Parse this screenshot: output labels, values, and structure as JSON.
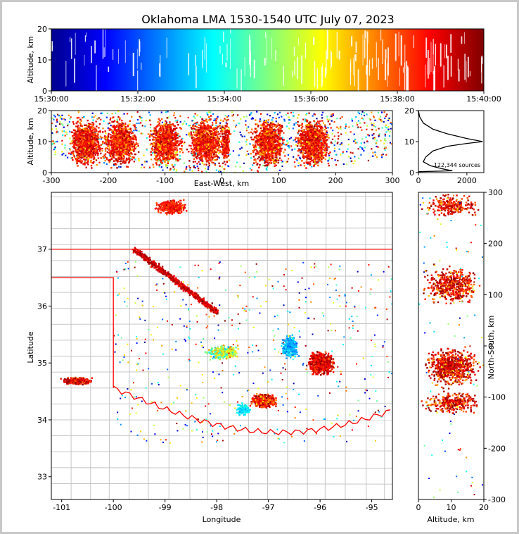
{
  "figure": {
    "title": "Oklahoma LMA 1530-1540 UTC July 07, 2023",
    "source_count_label": "122,344 sources"
  },
  "colors": {
    "colormap": [
      "#00008f",
      "#0000ff",
      "#0080ff",
      "#00ffff",
      "#80ff80",
      "#ffff00",
      "#ff8000",
      "#ff0000",
      "#800000"
    ],
    "state_border": "#ff0000",
    "county_lines": "#c0c0c0",
    "histogram_line": "#000000"
  },
  "chart_data": [
    {
      "type": "scatter",
      "panel": "time-altitude",
      "xlabel": "",
      "ylabel": "Altitude, km",
      "x_ticks": [
        "15:30:00",
        "15:32:00",
        "15:34:00",
        "15:36:00",
        "15:38:00",
        "15:40:00"
      ],
      "y_ticks": [
        0,
        10,
        20
      ],
      "ylim": [
        0,
        20
      ],
      "grid": false
    },
    {
      "type": "scatter",
      "panel": "east-west-altitude",
      "xlabel": "East-West, km",
      "ylabel": "Altitude, km",
      "x_ticks": [
        -300,
        -200,
        -100,
        0,
        100,
        200,
        300
      ],
      "xlim": [
        -300,
        300
      ],
      "y_ticks": [
        0,
        10,
        20
      ],
      "ylim": [
        0,
        20
      ],
      "clusters_x_km": [
        -240,
        -180,
        -100,
        -30,
        5,
        80,
        160
      ]
    },
    {
      "type": "line",
      "panel": "altitude-histogram",
      "x_ticks": [
        0,
        2000
      ],
      "xlim": [
        0,
        2700
      ],
      "y_ticks": [
        0,
        10,
        20
      ],
      "ylim": [
        0,
        20
      ],
      "points": [
        [
          0,
          20
        ],
        [
          50,
          18
        ],
        [
          200,
          16
        ],
        [
          600,
          14
        ],
        [
          1200,
          12.5
        ],
        [
          2000,
          11
        ],
        [
          2650,
          10
        ],
        [
          2000,
          9.4
        ],
        [
          1200,
          8.5
        ],
        [
          600,
          7
        ],
        [
          300,
          5
        ],
        [
          200,
          3.5
        ],
        [
          500,
          2.2
        ],
        [
          1000,
          1.2
        ],
        [
          1400,
          0.6
        ],
        [
          0,
          0.3
        ]
      ]
    },
    {
      "type": "scatter",
      "panel": "plan-view",
      "xlabel": "Longitude",
      "ylabel": "Latitude",
      "x_ticks": [
        -101,
        -100,
        -99,
        -98,
        -97,
        -96,
        -95
      ],
      "xlim": [
        -101.2,
        -94.6
      ],
      "y_ticks": [
        33,
        34,
        35,
        36,
        37
      ],
      "ylim": [
        32.6,
        38.0
      ]
    },
    {
      "type": "scatter",
      "panel": "north-south-altitude",
      "xlabel": "Altitude, km",
      "ylabel": "North-South, km",
      "x_ticks": [
        0,
        10,
        20
      ],
      "xlim": [
        0,
        20
      ],
      "y_ticks": [
        -300,
        -200,
        -100,
        0,
        100,
        200,
        300
      ],
      "ylim": [
        -300,
        300
      ]
    }
  ]
}
